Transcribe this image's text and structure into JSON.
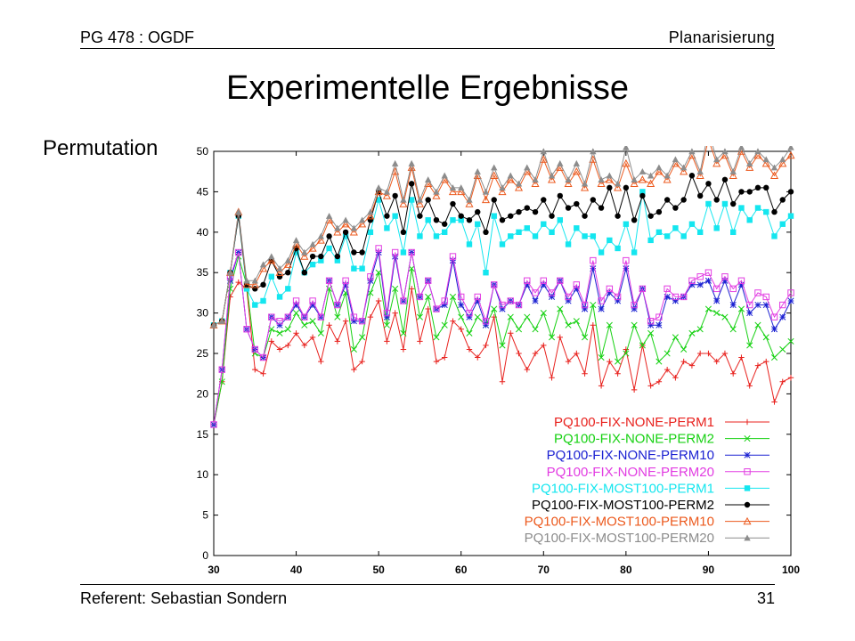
{
  "header": {
    "left": "PG 478 : OGDF",
    "right": "Planarisierung"
  },
  "title": "Experimentelle Ergebnisse",
  "section_label": "Permutation",
  "footer": {
    "left": "Referent: Sebastian Sondern",
    "right": "31"
  },
  "chart_data": {
    "type": "line",
    "title": "",
    "xlabel": "",
    "ylabel": "",
    "xlim": [
      30,
      100
    ],
    "ylim": [
      0,
      50
    ],
    "x_ticks": [
      "30",
      "40",
      "50",
      "60",
      "70",
      "80",
      "90",
      "100"
    ],
    "y_ticks": [
      "0",
      "5",
      "10",
      "15",
      "20",
      "25",
      "30",
      "35",
      "40",
      "45",
      "50"
    ],
    "grid": false,
    "legend_position": "bottom-right",
    "x": [
      30,
      31,
      32,
      33,
      34,
      35,
      36,
      37,
      38,
      39,
      40,
      41,
      42,
      43,
      44,
      45,
      46,
      47,
      48,
      49,
      50,
      51,
      52,
      53,
      54,
      55,
      56,
      57,
      58,
      59,
      60,
      61,
      62,
      63,
      64,
      65,
      66,
      67,
      68,
      69,
      70,
      71,
      72,
      73,
      74,
      75,
      76,
      77,
      78,
      79,
      80,
      81,
      82,
      83,
      84,
      85,
      86,
      87,
      88,
      89,
      90,
      91,
      92,
      93,
      94,
      95,
      96,
      97,
      98,
      99,
      100
    ],
    "series": [
      {
        "name": "PQ100-FIX-NONE-PERM1",
        "color": "#e8221e",
        "marker": "plus",
        "values": [
          16.2,
          21.5,
          32.0,
          33.8,
          33.0,
          23.0,
          22.5,
          26.5,
          25.5,
          26.0,
          27.5,
          26.0,
          27.0,
          24.0,
          28.5,
          26.5,
          29.0,
          23.0,
          24.0,
          29.5,
          31.5,
          26.5,
          30.0,
          25.5,
          33.0,
          26.5,
          30.5,
          24.0,
          24.5,
          29.0,
          28.0,
          25.5,
          24.5,
          26.0,
          29.5,
          21.5,
          27.5,
          25.0,
          23.0,
          25.0,
          26.0,
          22.0,
          27.0,
          24.0,
          25.0,
          22.5,
          28.5,
          21.0,
          24.0,
          22.5,
          25.5,
          20.5,
          26.0,
          21.0,
          21.5,
          23.0,
          22.0,
          24.0,
          23.5,
          25.0,
          25.0,
          24.0,
          25.0,
          22.5,
          24.5,
          21.0,
          23.5,
          24.0,
          19.0,
          21.5,
          22.0
        ]
      },
      {
        "name": "PQ100-FIX-NONE-PERM2",
        "color": "#16d112",
        "marker": "x",
        "values": [
          16.2,
          21.5,
          33.0,
          37.0,
          33.5,
          25.0,
          24.5,
          28.0,
          27.5,
          28.0,
          30.0,
          28.5,
          29.0,
          27.5,
          33.0,
          29.5,
          32.5,
          25.5,
          27.0,
          32.5,
          35.0,
          28.5,
          33.0,
          27.5,
          35.5,
          29.5,
          32.0,
          27.0,
          28.5,
          32.0,
          29.5,
          27.5,
          29.5,
          28.5,
          30.5,
          26.0,
          29.5,
          28.0,
          29.5,
          28.0,
          30.0,
          27.0,
          30.5,
          28.5,
          29.0,
          27.0,
          31.0,
          24.5,
          28.5,
          24.0,
          25.0,
          28.5,
          26.0,
          27.5,
          24.0,
          25.0,
          27.0,
          25.5,
          27.5,
          28.0,
          30.5,
          30.0,
          29.5,
          28.0,
          30.5,
          26.0,
          28.5,
          27.0,
          24.5,
          25.5,
          26.5
        ]
      },
      {
        "name": "PQ100-FIX-NONE-PERM10",
        "color": "#1c22d2",
        "marker": "star",
        "values": [
          16.2,
          23.0,
          34.0,
          37.5,
          28.0,
          25.5,
          24.5,
          29.5,
          28.5,
          29.5,
          31.0,
          29.5,
          31.0,
          29.5,
          34.0,
          31.0,
          33.5,
          29.0,
          29.0,
          34.0,
          37.5,
          29.5,
          37.0,
          31.5,
          37.5,
          32.0,
          34.0,
          30.5,
          31.0,
          36.5,
          31.0,
          29.5,
          31.5,
          28.5,
          33.5,
          30.5,
          31.5,
          31.0,
          33.5,
          31.5,
          33.5,
          32.0,
          34.0,
          31.5,
          33.0,
          30.5,
          35.5,
          30.5,
          32.5,
          31.5,
          35.5,
          30.5,
          33.0,
          28.5,
          28.5,
          32.0,
          31.5,
          32.0,
          33.5,
          33.5,
          34.0,
          31.5,
          34.0,
          31.0,
          33.5,
          30.0,
          31.0,
          31.0,
          28.0,
          29.5,
          31.5
        ]
      },
      {
        "name": "PQ100-FIX-NONE-PERM20",
        "color": "#e23de2",
        "marker": "square-open",
        "values": [
          16.2,
          23.0,
          34.5,
          37.5,
          28.0,
          25.5,
          24.5,
          29.5,
          29.0,
          29.5,
          31.5,
          29.5,
          31.5,
          29.5,
          34.0,
          31.0,
          34.0,
          29.5,
          29.0,
          34.5,
          38.0,
          30.0,
          37.5,
          31.5,
          37.5,
          32.0,
          34.0,
          30.5,
          31.5,
          37.0,
          32.0,
          30.0,
          32.0,
          29.0,
          33.5,
          31.0,
          31.5,
          31.0,
          34.0,
          32.5,
          34.0,
          32.5,
          34.0,
          32.0,
          33.5,
          31.0,
          36.5,
          31.5,
          33.0,
          32.0,
          36.5,
          31.0,
          33.0,
          29.0,
          29.5,
          33.0,
          32.0,
          32.0,
          34.0,
          34.5,
          35.0,
          33.0,
          34.5,
          33.0,
          34.0,
          31.0,
          32.5,
          32.0,
          29.5,
          31.0,
          32.5
        ]
      },
      {
        "name": "PQ100-FIX-MOST100-PERM1",
        "color": "#14e6ef",
        "marker": "square",
        "values": [
          28.5,
          29.0,
          35.0,
          42.0,
          33.0,
          31.0,
          31.5,
          34.5,
          32.0,
          33.0,
          37.5,
          35.0,
          36.0,
          36.5,
          38.0,
          36.5,
          39.5,
          35.5,
          35.5,
          40.0,
          44.0,
          40.5,
          42.0,
          37.5,
          44.0,
          39.5,
          41.5,
          39.5,
          40.0,
          41.5,
          41.5,
          38.5,
          41.0,
          35.0,
          42.0,
          38.5,
          39.5,
          40.0,
          40.5,
          39.5,
          41.0,
          40.0,
          41.5,
          38.5,
          40.5,
          39.5,
          39.5,
          37.5,
          39.0,
          38.0,
          41.0,
          37.5,
          45.0,
          39.0,
          40.0,
          39.5,
          40.5,
          39.5,
          41.0,
          40.0,
          43.5,
          40.5,
          43.5,
          40.0,
          43.0,
          41.5,
          43.0,
          42.5,
          39.5,
          41.0,
          42.0
        ]
      },
      {
        "name": "PQ100-FIX-MOST100-PERM2",
        "color": "#000000",
        "marker": "circle",
        "values": [
          28.5,
          29.0,
          35.0,
          42.0,
          33.5,
          33.0,
          33.5,
          36.5,
          34.5,
          35.0,
          38.0,
          35.0,
          37.0,
          37.0,
          39.5,
          37.0,
          40.0,
          37.5,
          37.5,
          41.5,
          45.0,
          42.0,
          44.5,
          40.0,
          46.0,
          42.0,
          44.0,
          41.5,
          41.0,
          43.5,
          42.0,
          41.5,
          42.5,
          40.0,
          44.0,
          41.5,
          42.0,
          42.5,
          43.0,
          42.5,
          44.0,
          42.0,
          44.5,
          43.0,
          43.5,
          42.0,
          44.0,
          43.0,
          45.5,
          42.0,
          45.5,
          41.5,
          44.5,
          42.0,
          42.5,
          44.0,
          43.0,
          44.0,
          47.0,
          44.5,
          46.0,
          44.0,
          46.5,
          43.5,
          45.0,
          45.0,
          45.5,
          45.5,
          42.5,
          44.0,
          45.0
        ]
      },
      {
        "name": "PQ100-FIX-MOST100-PERM10",
        "color": "#ec5a1e",
        "marker": "triangle-open",
        "values": [
          28.5,
          29.0,
          35.0,
          42.5,
          33.5,
          33.5,
          35.5,
          36.5,
          35.0,
          36.0,
          38.5,
          37.0,
          38.0,
          39.0,
          41.5,
          40.0,
          41.0,
          40.0,
          41.0,
          42.0,
          45.0,
          44.5,
          47.5,
          43.5,
          48.0,
          43.5,
          46.0,
          44.5,
          46.5,
          45.0,
          45.0,
          43.5,
          47.0,
          44.0,
          47.0,
          45.0,
          46.5,
          45.5,
          47.5,
          46.0,
          49.0,
          46.5,
          48.0,
          46.0,
          47.5,
          45.5,
          49.0,
          46.0,
          46.5,
          45.5,
          48.5,
          46.0,
          46.5,
          46.0,
          47.5,
          46.5,
          48.5,
          47.5,
          49.5,
          47.0,
          51.5,
          48.5,
          49.5,
          47.0,
          50.0,
          48.0,
          49.5,
          48.5,
          47.0,
          48.5,
          49.5
        ]
      },
      {
        "name": "PQ100-FIX-MOST100-PERM20",
        "color": "#8c8c8c",
        "marker": "triangle",
        "values": [
          28.5,
          29.0,
          35.0,
          42.5,
          34.0,
          34.0,
          36.0,
          37.0,
          35.5,
          36.5,
          39.0,
          37.5,
          38.5,
          39.5,
          42.0,
          40.5,
          41.5,
          40.5,
          41.5,
          42.5,
          45.5,
          45.0,
          48.5,
          44.0,
          48.5,
          44.0,
          46.5,
          45.0,
          47.0,
          45.5,
          45.5,
          44.0,
          47.5,
          45.0,
          48.0,
          45.5,
          47.0,
          46.0,
          48.0,
          46.5,
          50.0,
          47.0,
          48.5,
          46.5,
          48.5,
          46.0,
          50.0,
          46.5,
          47.0,
          46.0,
          50.5,
          46.5,
          47.5,
          47.0,
          48.0,
          47.0,
          49.0,
          48.0,
          50.0,
          47.5,
          52.5,
          49.0,
          50.0,
          47.5,
          50.5,
          48.5,
          50.0,
          49.0,
          48.0,
          49.0,
          50.5
        ]
      }
    ]
  }
}
